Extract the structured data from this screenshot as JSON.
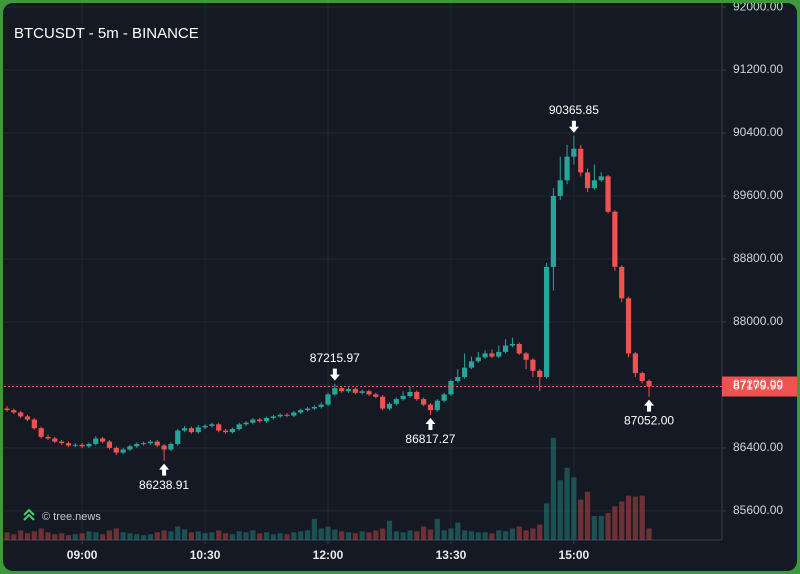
{
  "chart_data": {
    "type": "candlestick",
    "title": "BTCUSDT - 5m - BINANCE",
    "watermark": "© tree.news",
    "x": [
      "08:05",
      "08:10",
      "08:15",
      "08:20",
      "08:25",
      "08:30",
      "08:35",
      "08:40",
      "08:45",
      "08:50",
      "08:55",
      "09:00",
      "09:05",
      "09:10",
      "09:15",
      "09:20",
      "09:25",
      "09:30",
      "09:35",
      "09:40",
      "09:45",
      "09:50",
      "09:55",
      "10:00",
      "10:05",
      "10:10",
      "10:15",
      "10:20",
      "10:25",
      "10:30",
      "10:35",
      "10:40",
      "10:45",
      "10:50",
      "10:55",
      "11:00",
      "11:05",
      "11:10",
      "11:15",
      "11:20",
      "11:25",
      "11:30",
      "11:35",
      "11:40",
      "11:45",
      "11:50",
      "11:55",
      "12:00",
      "12:05",
      "12:10",
      "12:15",
      "12:20",
      "12:25",
      "12:30",
      "12:35",
      "12:40",
      "12:45",
      "12:50",
      "12:55",
      "13:00",
      "13:05",
      "13:10",
      "13:15",
      "13:20",
      "13:25",
      "13:30",
      "13:35",
      "13:40",
      "13:45",
      "13:50",
      "13:55",
      "14:00",
      "14:05",
      "14:10",
      "14:15",
      "14:20",
      "14:25",
      "14:30",
      "14:35",
      "14:40",
      "14:45",
      "14:50",
      "14:55",
      "15:00",
      "15:05",
      "15:10",
      "15:15",
      "15:20",
      "15:25",
      "15:30",
      "15:35",
      "15:40",
      "15:45",
      "15:50",
      "15:55"
    ],
    "open": [
      86900,
      86880,
      86850,
      86800,
      86760,
      86650,
      86540,
      86520,
      86480,
      86460,
      86430,
      86440,
      86420,
      86450,
      86520,
      86480,
      86400,
      86340,
      86380,
      86420,
      86450,
      86460,
      86480,
      86430,
      86380,
      86450,
      86620,
      86650,
      86600,
      86660,
      86680,
      86700,
      86620,
      86600,
      86640,
      86700,
      86720,
      86760,
      86740,
      86780,
      86800,
      86820,
      86810,
      86850,
      86880,
      86900,
      86920,
      86950,
      87080,
      87160,
      87120,
      87150,
      87100,
      87120,
      87080,
      87050,
      86900,
      86960,
      87020,
      87060,
      87110,
      87020,
      86950,
      86880,
      87000,
      87080,
      87250,
      87300,
      87420,
      87500,
      87550,
      87600,
      87560,
      87620,
      87700,
      87720,
      87600,
      87520,
      87380,
      87300,
      88700,
      89600,
      89800,
      90100,
      90200,
      89900,
      89700,
      89800,
      89850,
      89400,
      88700,
      88300,
      87600,
      87350,
      87250
    ],
    "high": [
      86930,
      86900,
      86870,
      86820,
      86780,
      86670,
      86570,
      86540,
      86500,
      86480,
      86460,
      86460,
      86470,
      86550,
      86540,
      86500,
      86420,
      86400,
      86440,
      86470,
      86480,
      86500,
      86500,
      86450,
      86470,
      86640,
      86680,
      86670,
      86690,
      86700,
      86720,
      86720,
      86640,
      86660,
      86720,
      86740,
      86780,
      86780,
      86800,
      86820,
      86840,
      86840,
      86870,
      86900,
      86920,
      86940,
      86980,
      87100,
      87215.97,
      87180,
      87170,
      87170,
      87140,
      87140,
      87100,
      87070,
      86980,
      87040,
      87120,
      87180,
      87130,
      87040,
      86970,
      87020,
      87100,
      87270,
      87400,
      87600,
      87560,
      87620,
      87640,
      87650,
      87700,
      87780,
      87800,
      87740,
      87620,
      87540,
      87400,
      88750,
      89700,
      90100,
      90250,
      90365.85,
      90250,
      89950,
      90000,
      89900,
      89870,
      89420,
      88720,
      88320,
      87620,
      87370,
      87270
    ],
    "low": [
      86860,
      86830,
      86780,
      86740,
      86630,
      86520,
      86500,
      86460,
      86440,
      86410,
      86410,
      86400,
      86400,
      86430,
      86460,
      86380,
      86310,
      86320,
      86360,
      86400,
      86430,
      86440,
      86410,
      86238.91,
      86360,
      86430,
      86600,
      86580,
      86580,
      86640,
      86660,
      86600,
      86580,
      86580,
      86620,
      86680,
      86700,
      86720,
      86720,
      86760,
      86780,
      86790,
      86790,
      86830,
      86860,
      86880,
      86900,
      86930,
      87060,
      87100,
      87100,
      87080,
      87080,
      87060,
      87030,
      86880,
      86880,
      86940,
      87000,
      87040,
      87000,
      86930,
      86817.27,
      86860,
      86980,
      87060,
      87230,
      87280,
      87400,
      87480,
      87530,
      87540,
      87540,
      87600,
      87680,
      87580,
      87400,
      87300,
      87120,
      87280,
      88400,
      89550,
      89750,
      90000,
      89850,
      89650,
      89680,
      89780,
      89380,
      88650,
      88250,
      87550,
      87300,
      87220,
      87052
    ],
    "close": [
      86880,
      86850,
      86800,
      86760,
      86650,
      86540,
      86520,
      86480,
      86460,
      86430,
      86440,
      86420,
      86450,
      86520,
      86480,
      86400,
      86340,
      86380,
      86420,
      86450,
      86460,
      86480,
      86430,
      86380,
      86450,
      86620,
      86650,
      86600,
      86660,
      86680,
      86700,
      86620,
      86600,
      86640,
      86700,
      86720,
      86760,
      86740,
      86780,
      86800,
      86820,
      86810,
      86850,
      86880,
      86900,
      86920,
      86950,
      87080,
      87160,
      87120,
      87150,
      87100,
      87120,
      87080,
      87050,
      86900,
      86960,
      87020,
      87060,
      87110,
      87020,
      86950,
      86880,
      87000,
      87080,
      87250,
      87300,
      87420,
      87500,
      87550,
      87600,
      87560,
      87620,
      87700,
      87720,
      87600,
      87520,
      87380,
      87300,
      88700,
      89600,
      89800,
      90100,
      90200,
      89900,
      89700,
      89800,
      89850,
      89400,
      88700,
      88300,
      87600,
      87350,
      87250,
      87179.99
    ],
    "volume": [
      8,
      6,
      10,
      7,
      9,
      12,
      8,
      6,
      7,
      5,
      6,
      7,
      9,
      8,
      6,
      10,
      12,
      8,
      7,
      6,
      5,
      6,
      8,
      10,
      9,
      14,
      11,
      8,
      9,
      7,
      8,
      10,
      7,
      6,
      9,
      8,
      10,
      7,
      8,
      6,
      7,
      6,
      8,
      9,
      10,
      22,
      12,
      14,
      11,
      9,
      8,
      7,
      9,
      8,
      10,
      12,
      20,
      9,
      8,
      10,
      9,
      14,
      11,
      22,
      10,
      12,
      18,
      10,
      9,
      8,
      8,
      7,
      10,
      9,
      12,
      14,
      10,
      12,
      16,
      38,
      106,
      62,
      75,
      65,
      42,
      50,
      25,
      25,
      28,
      35,
      40,
      46,
      45,
      46,
      12
    ],
    "volume_lim": [
      0,
      110
    ],
    "up_color": "#26a69a",
    "down_color": "#ef5350",
    "ylim": [
      85230,
      92090
    ],
    "yticks": [
      {
        "value": 85600,
        "label": "85600.00"
      },
      {
        "value": 86400,
        "label": "86400.00"
      },
      {
        "value": 87200,
        "label": "87200.00"
      },
      {
        "value": 88000,
        "label": "88000.00"
      },
      {
        "value": 88800,
        "label": "88800.00"
      },
      {
        "value": 89600,
        "label": "89600.00"
      },
      {
        "value": 90400,
        "label": "90400.00"
      },
      {
        "value": 91200,
        "label": "91200.00"
      },
      {
        "value": 92000,
        "label": "92000.00"
      }
    ],
    "xticks": [
      "09:00",
      "10:30",
      "12:00",
      "13:30",
      "15:00"
    ],
    "grid": true,
    "last_price": {
      "value": 87179.99,
      "label": "87179.99"
    },
    "annotations": [
      {
        "x": "10:00",
        "value": 86238.91,
        "label": "86238.91",
        "position": "below"
      },
      {
        "x": "12:05",
        "value": 87215.97,
        "label": "87215.97",
        "position": "above"
      },
      {
        "x": "13:15",
        "value": 86817.27,
        "label": "86817.27",
        "position": "below"
      },
      {
        "x": "15:00",
        "value": 90365.85,
        "label": "90365.85",
        "position": "above"
      },
      {
        "x": "15:55",
        "value": 87052.0,
        "label": "87052.00",
        "position": "below"
      }
    ]
  }
}
